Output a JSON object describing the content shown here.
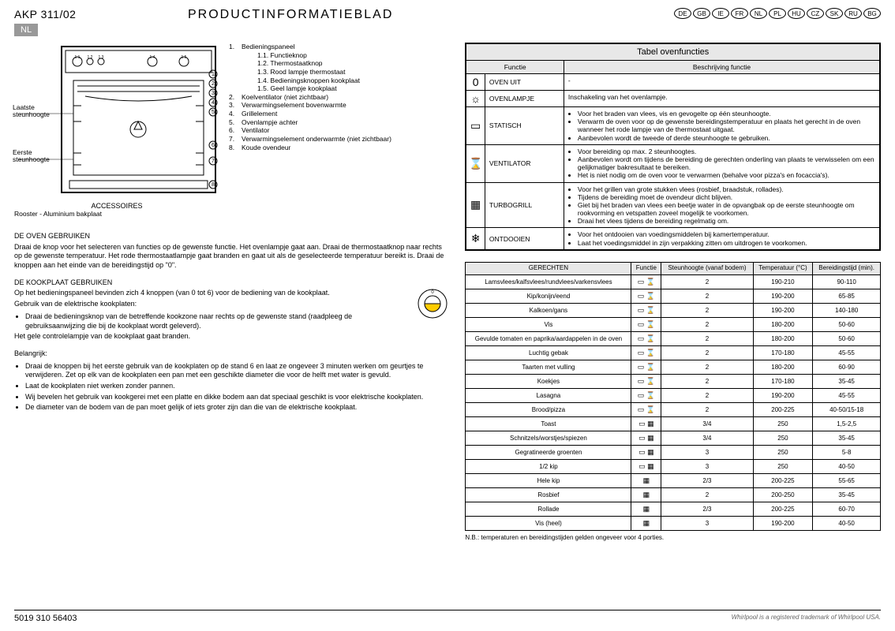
{
  "header": {
    "model": "AKP 311/02",
    "lang_badge": "NL",
    "title": "PRODUCTINFORMATIEBLAD",
    "langs": [
      "DE",
      "GB",
      "IE",
      "FR",
      "NL",
      "PL",
      "HU",
      "CZ",
      "SK",
      "RU",
      "BG"
    ]
  },
  "oven": {
    "label_last": "Laatste steunhoogte",
    "label_first": "Eerste steunhoogte",
    "accessoires_title": "ACCESSOIRES",
    "accessoires_sub": "Rooster - Aluminium bakplaat"
  },
  "legend": [
    {
      "n": "1.",
      "t": "Bedieningspaneel"
    },
    {
      "n": "",
      "t": "1.1.  Functieknop",
      "sub": true
    },
    {
      "n": "",
      "t": "1.2.  Thermostaatknop",
      "sub": true
    },
    {
      "n": "",
      "t": "1.3.  Rood lampje thermostaat",
      "sub": true
    },
    {
      "n": "",
      "t": "1.4.  Bedieningsknoppen kookplaat",
      "sub": true
    },
    {
      "n": "",
      "t": "1.5.  Geel lampje kookplaat",
      "sub": true
    },
    {
      "n": "2.",
      "t": "Koelventilator (niet zichtbaar)"
    },
    {
      "n": "3.",
      "t": "Verwarmingselement bovenwarmte"
    },
    {
      "n": "4.",
      "t": "Grillelement"
    },
    {
      "n": "5.",
      "t": "Ovenlampje achter"
    },
    {
      "n": "6.",
      "t": "Ventilator"
    },
    {
      "n": "7.",
      "t": "Verwarmingselement onderwarmte (niet zichtbaar)"
    },
    {
      "n": "8.",
      "t": "Koude ovendeur"
    }
  ],
  "sections": {
    "s1_title": "DE OVEN GEBRUIKEN",
    "s1_p": "Draai de knop voor het selecteren van functies op de gewenste functie. Het ovenlampje gaat aan. Draai de thermostaatknop naar rechts op de gewenste temperatuur. Het rode thermostaatlampje gaat branden en gaat uit als de geselecteerde temperatuur bereikt is. Draai de knoppen aan het einde van de bereidingstijd op \"0\".",
    "s2_title": "DE KOOKPLAAT GEBRUIKEN",
    "s2_p1": "Op het bedieningspaneel bevinden zich 4 knoppen (van 0 tot 6) voor de bediening van de kookplaat.",
    "s2_p2": "Gebruik van de elektrische kookplaten:",
    "s2_li1": "Draai de bedieningsknop van de betreffende kookzone naar rechts op de gewenste stand (raadpleeg de gebruiksaanwijzing die bij de kookplaat wordt geleverd).",
    "s2_p3": "Het gele controlelampje van de kookplaat gaat branden.",
    "s3_title": "Belangrijk:",
    "s3_li1": "Draai de knoppen bij het eerste gebruik van de kookplaten op de stand 6 en laat ze ongeveer 3 minuten werken om geurtjes te verwijderen. Zet op elk van de kookplaten een pan met een geschikte diameter die voor de helft met water is gevuld.",
    "s3_li2": "Laat de kookplaten niet werken zonder pannen.",
    "s3_li3": "Wij bevelen het gebruik van kookgerei met een platte en dikke bodem aan dat speciaal geschikt is voor elektrische kookplaten.",
    "s3_li4": "De diameter van de bodem van de pan moet gelijk of iets groter zijn dan die van de elektrische kookplaat."
  },
  "func_table": {
    "caption": "Tabel ovenfuncties",
    "h1": "Functie",
    "h2": "Beschrijving functie",
    "rows": [
      {
        "icon": "0",
        "name": "OVEN UIT",
        "desc": [
          "-"
        ]
      },
      {
        "icon": "☼",
        "name": "OVENLAMPJE",
        "desc": [
          "Inschakeling van het ovenlampje."
        ]
      },
      {
        "icon": "▭",
        "name": "STATISCH",
        "desc": [
          "Voor het braden van vlees, vis en gevogelte op één steunhoogte.",
          "Verwarm de oven voor op de gewenste bereidingstemperatuur en plaats het gerecht in de oven wanneer het rode lampje van de thermostaat uitgaat.",
          "Aanbevolen wordt de tweede of derde steunhoogte te gebruiken."
        ]
      },
      {
        "icon": "⌛",
        "name": "VENTILATOR",
        "desc": [
          "Voor bereiding op max. 2 steunhoogtes.",
          "Aanbevolen wordt om tijdens de bereiding de gerechten onderling van plaats te verwisselen om een gelijkmatiger bakresultaat te bereiken.",
          "Het is niet nodig om de oven voor te verwarmen (behalve voor pizza's en focaccia's)."
        ]
      },
      {
        "icon": "▦",
        "name": "TURBOGRILL",
        "desc": [
          "Voor het grillen van grote stukken vlees (rosbief, braadstuk, rollades).",
          "Tijdens de bereiding moet de ovendeur dicht blijven.",
          "Giet bij het braden van vlees een beetje water in de opvangbak op de eerste steunhoogte om rookvorming en vetspatten zoveel mogelijk te voorkomen.",
          "Draai het vlees tijdens de bereiding regelmatig om."
        ]
      },
      {
        "icon": "❄",
        "name": "ONTDOOIEN",
        "desc": [
          "Voor het ontdooien van voedingsmiddelen bij kamertemperatuur.",
          "Laat het voedingsmiddel in zijn verpakking zitten om uitdrogen te voorkomen."
        ]
      }
    ]
  },
  "cook_table": {
    "headers": [
      "GERECHTEN",
      "Functie",
      "Steunhoogte (vanaf bodem)",
      "Temperatuur (°C)",
      "Bereidingstijd (min)."
    ],
    "icon_pair": "▭ ⌛",
    "icon_grill": "▦",
    "rows": [
      {
        "dish": "Lamsvlees/kalfsvlees/rundvlees/varkensvlees",
        "f": "pair",
        "h": "2",
        "t": "190-210",
        "m": "90-110"
      },
      {
        "dish": "Kip/konijn/eend",
        "f": "pair",
        "h": "2",
        "t": "190-200",
        "m": "65-85"
      },
      {
        "dish": "Kalkoen/gans",
        "f": "pair",
        "h": "2",
        "t": "190-200",
        "m": "140-180"
      },
      {
        "dish": "Vis",
        "f": "pair",
        "h": "2",
        "t": "180-200",
        "m": "50-60"
      },
      {
        "dish": "Gevulde tomaten en paprika/aardappelen in de oven",
        "f": "pair",
        "h": "2",
        "t": "180-200",
        "m": "50-60"
      },
      {
        "dish": "Luchtig gebak",
        "f": "pair",
        "h": "2",
        "t": "170-180",
        "m": "45-55"
      },
      {
        "dish": "Taarten met vulling",
        "f": "pair",
        "h": "2",
        "t": "180-200",
        "m": "60-90"
      },
      {
        "dish": "Koekjes",
        "f": "pair",
        "h": "2",
        "t": "170-180",
        "m": "35-45"
      },
      {
        "dish": "Lasagna",
        "f": "pair",
        "h": "2",
        "t": "190-200",
        "m": "45-55"
      },
      {
        "dish": "Brood/pizza",
        "f": "pair",
        "h": "2",
        "t": "200-225",
        "m": "40-50/15-18"
      },
      {
        "dish": "Toast",
        "f": "grill",
        "h": "3/4",
        "t": "250",
        "m": "1,5-2,5"
      },
      {
        "dish": "Schnitzels/worstjes/spiezen",
        "f": "grill",
        "h": "3/4",
        "t": "250",
        "m": "35-45"
      },
      {
        "dish": "Gegratineerde groenten",
        "f": "grill",
        "h": "3",
        "t": "250",
        "m": "5-8"
      },
      {
        "dish": "1/2 kip",
        "f": "grill",
        "h": "3",
        "t": "250",
        "m": "40-50"
      },
      {
        "dish": "Hele kip",
        "f": "tg",
        "h": "2/3",
        "t": "200-225",
        "m": "55-65"
      },
      {
        "dish": "Rosbief",
        "f": "tg",
        "h": "2",
        "t": "200-250",
        "m": "35-45"
      },
      {
        "dish": "Rollade",
        "f": "tg",
        "h": "2/3",
        "t": "200-225",
        "m": "60-70"
      },
      {
        "dish": "Vis (heel)",
        "f": "tg",
        "h": "3",
        "t": "190-200",
        "m": "40-50"
      }
    ],
    "nb": "N.B.: temperaturen en bereidingstijden gelden ongeveer voor 4 porties."
  },
  "footer": {
    "left": "5019 310 56403",
    "right": "Whirlpool is a registered trademark of Whirlpool USA."
  }
}
